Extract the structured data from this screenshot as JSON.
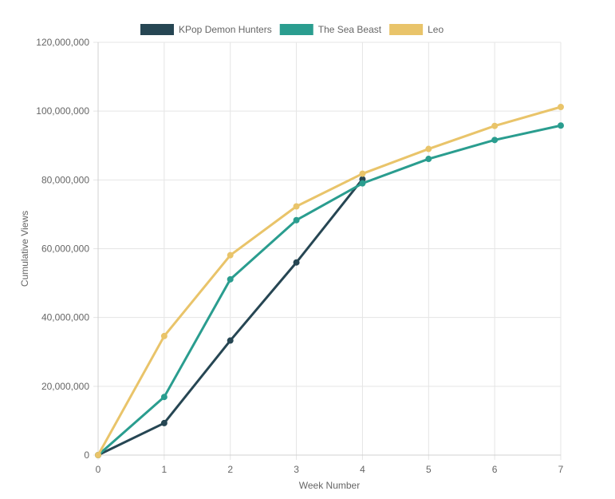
{
  "chart_data": {
    "type": "line",
    "title": "",
    "xlabel": "Week Number",
    "ylabel": "Cumulative Views",
    "x": [
      0,
      1,
      2,
      3,
      4,
      5,
      6,
      7
    ],
    "x_tick_labels": [
      "0",
      "1",
      "2",
      "3",
      "4",
      "5",
      "6",
      "7"
    ],
    "xlim": [
      0,
      7
    ],
    "ylim": [
      0,
      120000000
    ],
    "y_ticks": [
      0,
      20000000,
      40000000,
      60000000,
      80000000,
      100000000,
      120000000
    ],
    "y_tick_labels": [
      "0",
      "20,000,000",
      "40,000,000",
      "60,000,000",
      "80,000,000",
      "100,000,000",
      "120,000,000"
    ],
    "grid": true,
    "legend_position": "top",
    "series": [
      {
        "name": "KPop Demon Hunters",
        "color": "#264653",
        "x": [
          0,
          1,
          2,
          3,
          4
        ],
        "values": [
          0,
          9300000,
          33300000,
          56000000,
          80200000
        ]
      },
      {
        "name": "The Sea Beast",
        "color": "#2a9d8f",
        "x": [
          0,
          1,
          2,
          3,
          4,
          5,
          6,
          7
        ],
        "values": [
          0,
          16900000,
          51100000,
          68300000,
          79000000,
          86100000,
          91600000,
          95800000
        ]
      },
      {
        "name": "Leo",
        "color": "#e9c46a",
        "x": [
          0,
          1,
          2,
          3,
          4,
          5,
          6,
          7
        ],
        "values": [
          0,
          34600000,
          58100000,
          72300000,
          81800000,
          89000000,
          95700000,
          101200000
        ]
      }
    ]
  }
}
